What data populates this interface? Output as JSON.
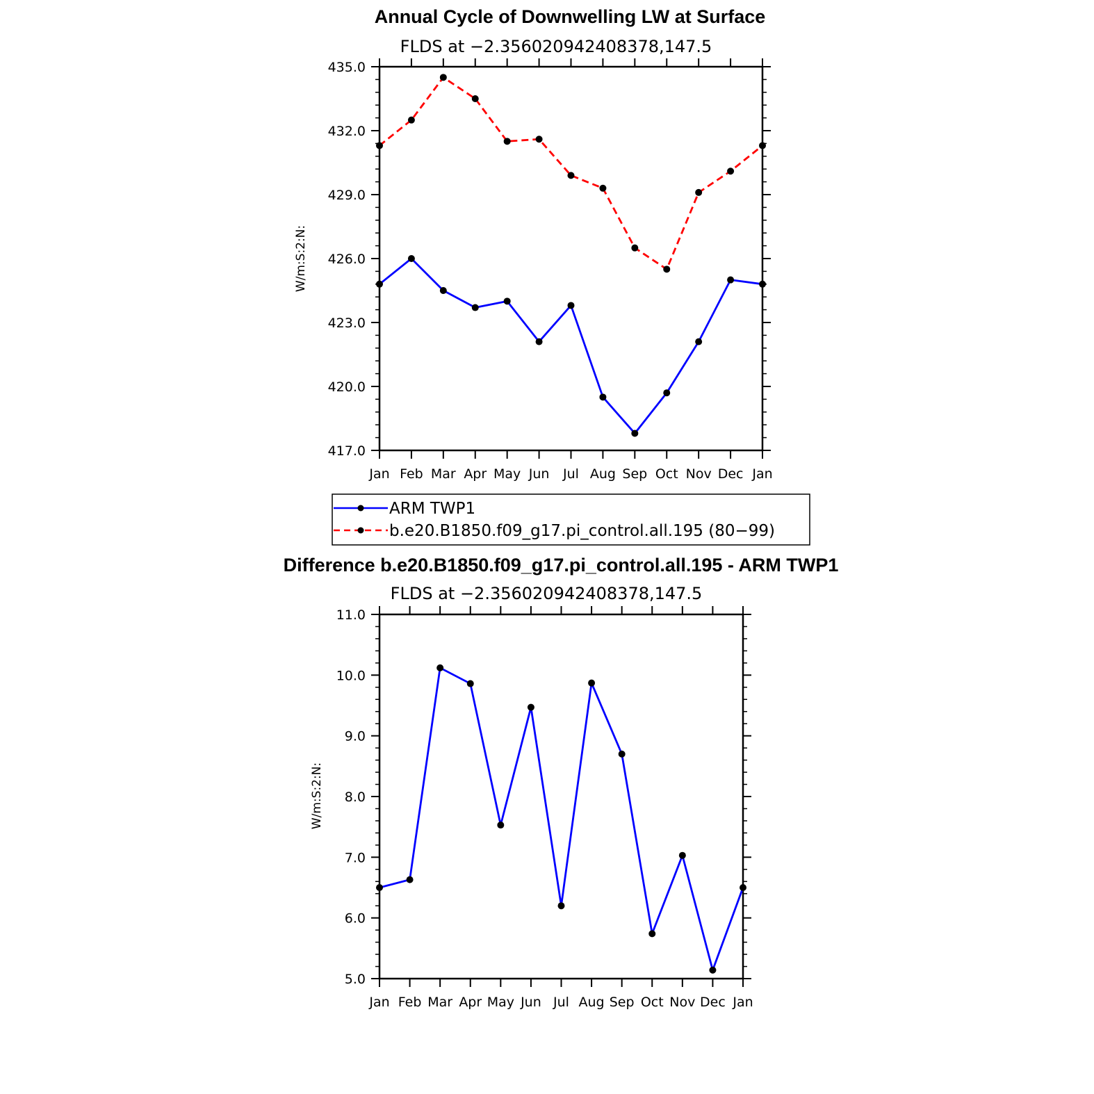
{
  "chart_data": [
    {
      "type": "line",
      "title": "Annual Cycle of Downwelling LW at Surface",
      "subtitle": "FLDS at −2.356020942408378,147.5",
      "xlabel": "",
      "ylabel": "W/m:S:2:N:",
      "categories": [
        "Jan",
        "Feb",
        "Mar",
        "Apr",
        "May",
        "Jun",
        "Jul",
        "Aug",
        "Sep",
        "Oct",
        "Nov",
        "Dec",
        "Jan"
      ],
      "yticks": [
        "417.0",
        "420.0",
        "423.0",
        "426.0",
        "429.0",
        "432.0",
        "435.0"
      ],
      "ylim": [
        417,
        435
      ],
      "grid": false,
      "legend_position": "below",
      "series": [
        {
          "name": "ARM TWP1",
          "color": "#0000ff",
          "dash": "solid",
          "values": [
            424.8,
            426.0,
            424.5,
            423.7,
            424.0,
            422.1,
            423.8,
            419.5,
            417.8,
            419.7,
            422.1,
            425.0,
            424.8
          ]
        },
        {
          "name": "b.e20.B1850.f09_g17.pi_control.all.195 (80−99)",
          "color": "#ff0000",
          "dash": "dashed",
          "values": [
            431.3,
            432.5,
            434.5,
            433.5,
            431.5,
            431.6,
            429.9,
            429.3,
            426.5,
            425.5,
            429.1,
            430.1,
            431.3
          ]
        }
      ]
    },
    {
      "type": "line",
      "title": "Difference b.e20.B1850.f09_g17.pi_control.all.195 - ARM TWP1",
      "subtitle": "FLDS at −2.356020942408378,147.5",
      "xlabel": "",
      "ylabel": "W/m:S:2:N:",
      "categories": [
        "Jan",
        "Feb",
        "Mar",
        "Apr",
        "May",
        "Jun",
        "Jul",
        "Aug",
        "Sep",
        "Oct",
        "Nov",
        "Dec",
        "Jan"
      ],
      "yticks": [
        "5.0",
        "6.0",
        "7.0",
        "8.0",
        "9.0",
        "10.0",
        "11.0"
      ],
      "ylim": [
        5,
        11
      ],
      "grid": false,
      "series": [
        {
          "color": "#0000ff",
          "dash": "solid",
          "values": [
            6.5,
            6.63,
            10.12,
            9.86,
            7.53,
            9.47,
            6.2,
            9.87,
            8.7,
            5.74,
            7.03,
            5.14,
            6.5
          ]
        }
      ]
    }
  ]
}
